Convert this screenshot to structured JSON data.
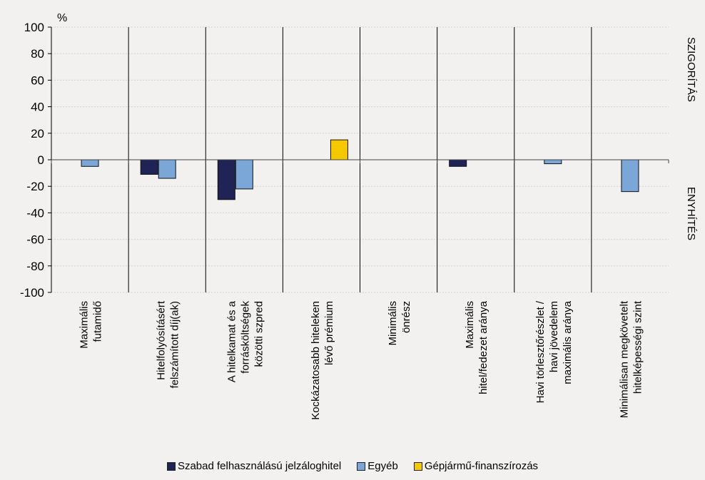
{
  "chart_data": {
    "type": "bar",
    "ylabel": "%",
    "ylim": [
      -100,
      100
    ],
    "yticks": [
      100,
      80,
      60,
      40,
      20,
      0,
      -20,
      -40,
      -60,
      -80,
      -100
    ],
    "right_labels": {
      "top": "SZIGORÍTÁS",
      "bottom": "ENYHÍTÉS"
    },
    "categories": [
      [
        "Maximális",
        "futamidő"
      ],
      [
        "Hitelfolyósításért",
        "felszámított díj(ak)"
      ],
      [
        "A hitelkamat és a",
        "forrásköltségek",
        "közötti szpred"
      ],
      [
        "Kockázatosabb hiteleken",
        "lévő prémium"
      ],
      [
        "Minimális",
        "önrész"
      ],
      [
        "Maximális",
        "hitel/fedezet aránya"
      ],
      [
        "Havi törlesztőrészlet /",
        "havi jövedelem",
        "maximális aránya"
      ],
      [
        "Minimálisan megkövetelt",
        "hitelképességi szint"
      ]
    ],
    "series": [
      {
        "name": "Szabad felhasználású jelzáloghitel",
        "color": "#1f2356",
        "values": [
          0,
          -11,
          -30,
          0,
          0,
          -5,
          0,
          0
        ]
      },
      {
        "name": "Egyéb",
        "color": "#7aa6d8",
        "values": [
          -5,
          -14,
          -22,
          0,
          0,
          0,
          -3,
          -24
        ]
      },
      {
        "name": "Gépjármű-finanszírozás",
        "color": "#f5c800",
        "values": [
          0,
          0,
          0,
          15,
          0,
          0,
          0,
          0
        ]
      }
    ],
    "grid": true,
    "legend_position": "bottom"
  }
}
